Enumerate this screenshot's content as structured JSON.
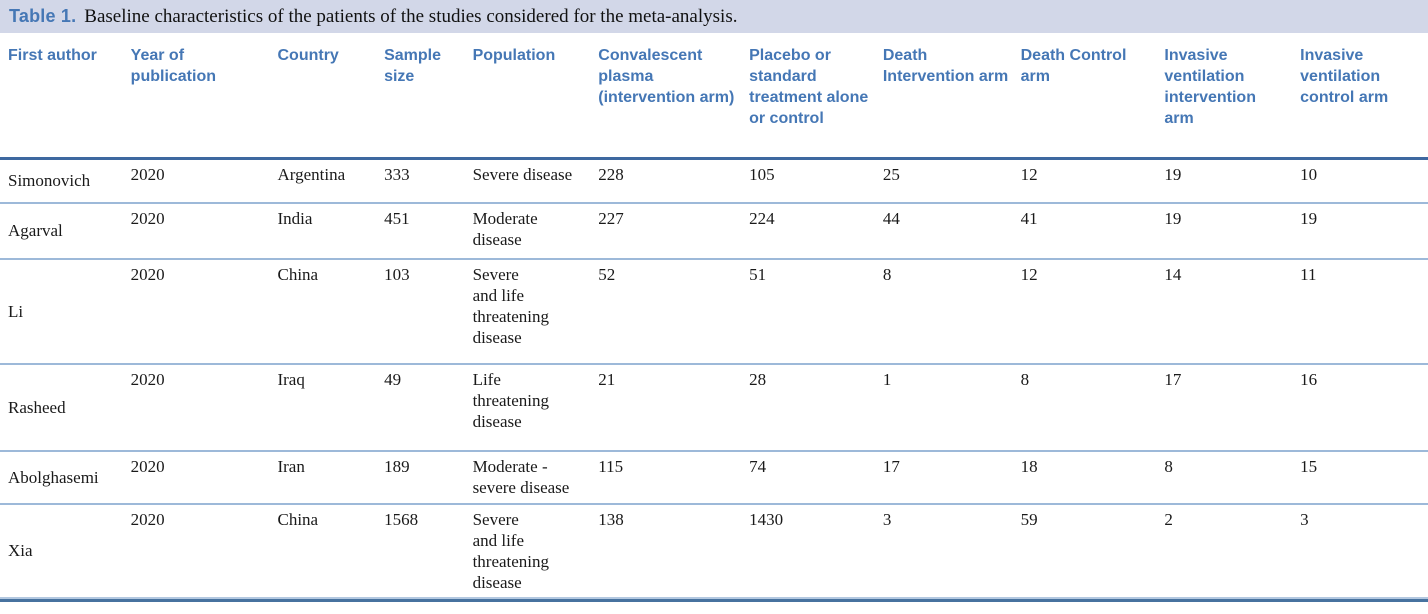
{
  "caption": {
    "label": "Table 1.",
    "text": "Baseline characteristics of the patients of the studies considered for the meta-analysis."
  },
  "colors": {
    "band_bg": "#d2d7e8",
    "accent": "#4577b5",
    "header_rule": "#3e68a0",
    "row_rule": "#9db9d9",
    "bottom_rule_light": "#b3c8e0",
    "bottom_rule_dark": "#47729f"
  },
  "table": {
    "columns": [
      "First author",
      "Year of publication",
      "Country",
      "Sample size",
      "Population",
      "Convalescent plasma (intervention arm)",
      "Placebo or standard treatment alone or control",
      "Death Intervention arm",
      "Death Control arm",
      "Invasive ventilation intervention arm",
      "Invasive ventilation control arm"
    ],
    "rows": [
      [
        "Simonovich",
        "2020",
        "Argentina",
        "333",
        "Severe disease",
        "228",
        "105",
        "25",
        "12",
        "19",
        "10"
      ],
      [
        "Agarval",
        "2020",
        "India",
        "451",
        "Moderate\ndisease",
        "227",
        "224",
        "44",
        "41",
        "19",
        "19"
      ],
      [
        "Li",
        "2020",
        "China",
        "103",
        "Severe\nand life\nthreatening\ndisease",
        "52",
        "51",
        "8",
        "12",
        "14",
        "11"
      ],
      [
        "Rasheed",
        "2020",
        "Iraq",
        "49",
        "Life\nthreatening\ndisease",
        "21",
        "28",
        "1",
        "8",
        "17",
        "16"
      ],
      [
        "Abolghasemi",
        "2020",
        "Iran",
        "189",
        "Moderate -\nsevere disease",
        "115",
        "74",
        "17",
        "18",
        "8",
        "15"
      ],
      [
        "Xia",
        "2020",
        "China",
        "1568",
        "Severe\nand life\nthreatening\ndisease",
        "138",
        "1430",
        "3",
        "59",
        "2",
        "3"
      ]
    ]
  }
}
